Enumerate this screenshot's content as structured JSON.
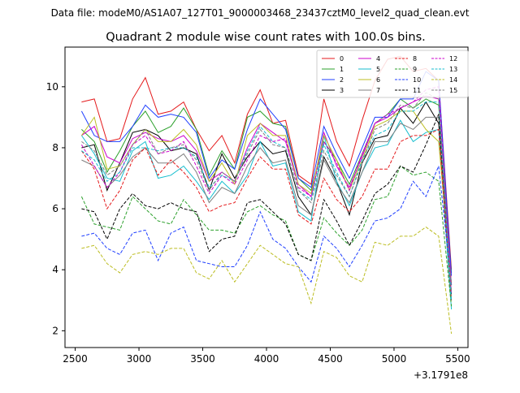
{
  "header": {
    "suptitle": "Data file: modeM0/AS1A07_127T01_9000003468_23437cztM0_level2_quad_clean.evt"
  },
  "chart_data": {
    "type": "line",
    "title": "Quadrant 2 module wise count rates with 100.0s bins.",
    "xlabel": "",
    "ylabel": "",
    "x_offset_label": "+3.1791e8",
    "xlim": [
      2420,
      5580
    ],
    "ylim": [
      1.45,
      11.3
    ],
    "xticks": [
      2500,
      3000,
      3500,
      4000,
      4500,
      5000,
      5500
    ],
    "yticks": [
      2,
      4,
      6,
      8,
      10
    ],
    "grid": false,
    "legend_position": "top-right",
    "legend_columns": 4,
    "x": [
      2550,
      2650,
      2750,
      2850,
      2950,
      3050,
      3150,
      3250,
      3350,
      3450,
      3550,
      3650,
      3750,
      3850,
      3950,
      4050,
      4150,
      4250,
      4350,
      4450,
      4550,
      4650,
      4750,
      4850,
      4950,
      5050,
      5150,
      5250,
      5350,
      5450
    ],
    "series": [
      {
        "name": "0",
        "color": "#e41a1c",
        "dash": "solid",
        "values": [
          9.5,
          9.6,
          8.2,
          8.3,
          9.6,
          10.3,
          9.1,
          9.2,
          9.5,
          8.6,
          7.9,
          8.4,
          7.5,
          9.1,
          9.9,
          8.8,
          8.9,
          7.1,
          6.8,
          9.6,
          8.2,
          7.4,
          8.9,
          10.2,
          10.9,
          11.0,
          10.5,
          10.6,
          10.2,
          4.0
        ]
      },
      {
        "name": "1",
        "color": "#2ca02c",
        "dash": "solid",
        "values": [
          8.6,
          8.2,
          7.2,
          7.9,
          8.7,
          9.2,
          8.5,
          8.7,
          9.3,
          8.6,
          7.1,
          7.9,
          7.3,
          9.0,
          9.2,
          8.8,
          8.7,
          7.0,
          6.6,
          8.2,
          7.6,
          6.8,
          7.8,
          8.8,
          9.1,
          9.6,
          9.3,
          9.6,
          9.4,
          3.9
        ]
      },
      {
        "name": "2",
        "color": "#1f3fff",
        "dash": "solid",
        "values": [
          9.2,
          8.4,
          8.2,
          8.2,
          8.7,
          9.4,
          9.0,
          9.1,
          9.0,
          8.5,
          7.0,
          7.6,
          7.3,
          8.6,
          9.6,
          9.1,
          8.6,
          7.0,
          6.7,
          8.7,
          7.8,
          7.0,
          8.0,
          9.0,
          9.0,
          9.6,
          9.6,
          10.5,
          10.2,
          3.8
        ]
      },
      {
        "name": "3",
        "color": "#000000",
        "dash": "solid",
        "values": [
          8.0,
          8.1,
          6.6,
          7.5,
          8.5,
          8.6,
          8.4,
          7.9,
          8.0,
          7.8,
          6.6,
          7.8,
          7.0,
          7.7,
          8.2,
          7.8,
          7.9,
          6.4,
          5.8,
          7.7,
          6.9,
          5.8,
          7.5,
          8.3,
          8.4,
          9.3,
          8.8,
          9.5,
          8.8,
          3.5
        ]
      },
      {
        "name": "4",
        "color": "#cc00cc",
        "dash": "solid",
        "values": [
          8.4,
          8.7,
          7.7,
          7.5,
          8.3,
          8.5,
          8.3,
          8.2,
          8.4,
          7.9,
          6.9,
          7.2,
          6.9,
          8.0,
          8.8,
          8.5,
          8.2,
          6.8,
          6.4,
          8.5,
          7.4,
          6.7,
          7.7,
          8.8,
          9.0,
          9.3,
          9.5,
          9.7,
          9.6,
          3.5
        ]
      },
      {
        "name": "5",
        "color": "#17becf",
        "dash": "solid",
        "values": [
          8.4,
          7.8,
          7.0,
          6.9,
          7.9,
          8.2,
          7.0,
          7.1,
          7.4,
          6.9,
          6.3,
          6.9,
          6.5,
          7.1,
          8.2,
          7.4,
          7.5,
          5.9,
          5.6,
          8.4,
          6.9,
          6.1,
          7.2,
          8.0,
          8.1,
          8.9,
          8.2,
          8.5,
          8.6,
          2.7
        ]
      },
      {
        "name": "6",
        "color": "#bcbd22",
        "dash": "solid",
        "values": [
          8.4,
          9.0,
          7.3,
          7.4,
          8.1,
          8.6,
          8.2,
          8.2,
          8.6,
          8.1,
          6.9,
          7.5,
          6.8,
          8.4,
          8.8,
          8.4,
          8.4,
          6.8,
          6.5,
          8.4,
          7.6,
          6.6,
          7.6,
          8.7,
          8.9,
          9.2,
          9.2,
          8.6,
          8.2,
          3.5
        ]
      },
      {
        "name": "7",
        "color": "#7f7f7f",
        "dash": "solid",
        "values": [
          7.6,
          7.4,
          6.7,
          7.1,
          7.7,
          8.0,
          7.5,
          7.5,
          7.8,
          7.2,
          6.2,
          6.7,
          6.5,
          7.4,
          8.0,
          7.5,
          7.6,
          6.1,
          5.8,
          7.6,
          6.8,
          6.2,
          7.2,
          8.2,
          8.2,
          8.8,
          8.6,
          9.0,
          9.0,
          3.0
        ]
      },
      {
        "name": "8",
        "color": "#e41a1c",
        "dash": "dashed",
        "values": [
          7.9,
          7.3,
          6.0,
          6.6,
          7.6,
          8.0,
          7.1,
          7.6,
          7.2,
          6.7,
          5.9,
          6.1,
          6.2,
          7.0,
          7.7,
          7.3,
          7.3,
          5.8,
          5.5,
          7.0,
          6.3,
          5.9,
          6.4,
          7.3,
          7.3,
          8.2,
          8.4,
          8.4,
          8.6,
          3.0
        ]
      },
      {
        "name": "9",
        "color": "#2ca02c",
        "dash": "dashed",
        "values": [
          6.4,
          5.5,
          5.4,
          5.3,
          6.4,
          6.0,
          5.6,
          5.5,
          6.3,
          5.8,
          5.3,
          5.3,
          5.2,
          5.9,
          6.1,
          5.8,
          5.6,
          4.5,
          4.3,
          5.7,
          5.2,
          4.8,
          5.3,
          6.3,
          6.4,
          7.4,
          7.1,
          7.2,
          6.9,
          2.8
        ]
      },
      {
        "name": "10",
        "color": "#1f3fff",
        "dash": "dashed",
        "values": [
          5.1,
          5.2,
          4.7,
          4.5,
          5.2,
          5.3,
          4.3,
          5.2,
          5.4,
          4.3,
          4.2,
          4.1,
          4.1,
          4.8,
          5.9,
          5.0,
          4.7,
          4.1,
          3.6,
          5.1,
          4.7,
          4.1,
          4.8,
          5.6,
          5.7,
          6.0,
          6.9,
          6.4,
          7.4,
          3.5
        ]
      },
      {
        "name": "11",
        "color": "#000000",
        "dash": "dashed",
        "values": [
          6.0,
          5.9,
          5.0,
          6.0,
          6.5,
          6.1,
          6.0,
          6.2,
          6.0,
          5.9,
          4.6,
          5.0,
          5.1,
          6.2,
          6.3,
          5.9,
          5.5,
          4.5,
          4.3,
          6.3,
          5.6,
          4.8,
          5.6,
          6.5,
          6.8,
          7.4,
          7.2,
          8.1,
          9.1,
          3.2
        ]
      },
      {
        "name": "12",
        "color": "#cc00cc",
        "dash": "dashed",
        "values": [
          8.1,
          7.4,
          6.7,
          7.2,
          8.1,
          8.4,
          7.8,
          7.9,
          8.2,
          7.4,
          6.5,
          7.1,
          6.8,
          7.6,
          8.4,
          8.2,
          8.3,
          6.7,
          6.4,
          8.2,
          7.5,
          6.6,
          7.8,
          8.8,
          9.1,
          9.3,
          9.5,
          9.9,
          10.0,
          3.2
        ]
      },
      {
        "name": "13",
        "color": "#17becf",
        "dash": "dashed",
        "values": [
          7.9,
          7.6,
          6.9,
          7.2,
          8.0,
          8.0,
          7.9,
          8.0,
          8.0,
          7.7,
          6.7,
          7.1,
          6.9,
          7.9,
          8.7,
          8.2,
          8.0,
          6.6,
          6.3,
          8.1,
          7.2,
          6.4,
          7.6,
          8.4,
          8.6,
          9.2,
          9.2,
          9.5,
          9.5,
          3.0
        ]
      },
      {
        "name": "14",
        "color": "#bcbd22",
        "dash": "dashed",
        "values": [
          4.7,
          4.8,
          4.2,
          3.9,
          4.5,
          4.6,
          4.5,
          4.7,
          4.7,
          3.9,
          3.7,
          4.3,
          3.6,
          4.2,
          4.8,
          4.5,
          4.2,
          4.1,
          2.9,
          4.6,
          4.4,
          3.8,
          3.6,
          4.9,
          4.8,
          5.1,
          5.1,
          5.4,
          5.1,
          1.9
        ]
      },
      {
        "name": "15",
        "color": "#7f7f7f",
        "dash": "dashed",
        "values": [
          8.2,
          7.9,
          7.1,
          7.4,
          8.1,
          8.6,
          7.8,
          8.0,
          8.1,
          7.6,
          6.6,
          7.2,
          6.9,
          7.8,
          8.6,
          8.1,
          8.0,
          6.6,
          6.2,
          7.9,
          7.1,
          6.4,
          7.5,
          8.6,
          8.8,
          9.4,
          9.3,
          9.8,
          9.6,
          3.3
        ]
      }
    ]
  }
}
